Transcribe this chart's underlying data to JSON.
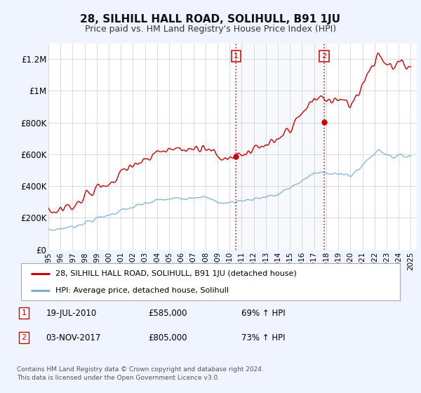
{
  "title": "28, SILHILL HALL ROAD, SOLIHULL, B91 1JU",
  "subtitle": "Price paid vs. HM Land Registry's House Price Index (HPI)",
  "bg_color": "#f0f4ff",
  "plot_bg_color": "#ffffff",
  "shade_color": "#dce8f5",
  "ylabel_ticks": [
    "£0",
    "£200K",
    "£400K",
    "£600K",
    "£800K",
    "£1M",
    "£1.2M"
  ],
  "ytick_vals": [
    0,
    200000,
    400000,
    600000,
    800000,
    1000000,
    1200000
  ],
  "ylim": [
    0,
    1300000
  ],
  "xlim_start": 1995.0,
  "xlim_end": 2025.5,
  "sale1_date": 2010.54,
  "sale1_price": 585000,
  "sale2_date": 2017.84,
  "sale2_price": 805000,
  "sale1_date_str": "19-JUL-2010",
  "sale2_date_str": "03-NOV-2017",
  "sale1_hpi_pct": "69% ↑ HPI",
  "sale2_hpi_pct": "73% ↑ HPI",
  "red_line_color": "#cc0000",
  "blue_line_color": "#7aafd4",
  "legend_label_red": "28, SILHILL HALL ROAD, SOLIHULL, B91 1JU (detached house)",
  "legend_label_blue": "HPI: Average price, detached house, Solihull",
  "footer1": "Contains HM Land Registry data © Crown copyright and database right 2024.",
  "footer2": "This data is licensed under the Open Government Licence v3.0.",
  "box_color": "#cc0000"
}
